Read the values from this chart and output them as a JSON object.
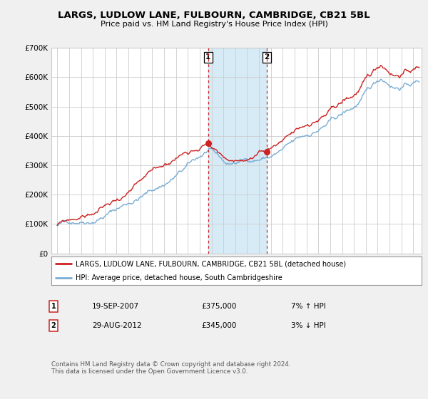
{
  "title": "LARGS, LUDLOW LANE, FULBOURN, CAMBRIDGE, CB21 5BL",
  "subtitle": "Price paid vs. HM Land Registry's House Price Index (HPI)",
  "red_label": "LARGS, LUDLOW LANE, FULBOURN, CAMBRIDGE, CB21 5BL (detached house)",
  "blue_label": "HPI: Average price, detached house, South Cambridgeshire",
  "sale1_date": "19-SEP-2007",
  "sale1_price": 375000,
  "sale1_hpi_pct": "7% ↑ HPI",
  "sale2_date": "29-AUG-2012",
  "sale2_price": 345000,
  "sale2_hpi_pct": "3% ↓ HPI",
  "footer": "Contains HM Land Registry data © Crown copyright and database right 2024.\nThis data is licensed under the Open Government Licence v3.0.",
  "ylim": [
    0,
    700000
  ],
  "xlim_left": 1994.5,
  "xlim_right": 2025.7,
  "background_color": "#f0f0f0",
  "plot_bg": "#ffffff",
  "red_color": "#cc2222",
  "blue_color": "#7aadd4",
  "shade_color": "#d0e8f5",
  "grid_color": "#cccccc",
  "sale1_year": 2007.72,
  "sale2_year": 2012.64,
  "n_points": 500
}
